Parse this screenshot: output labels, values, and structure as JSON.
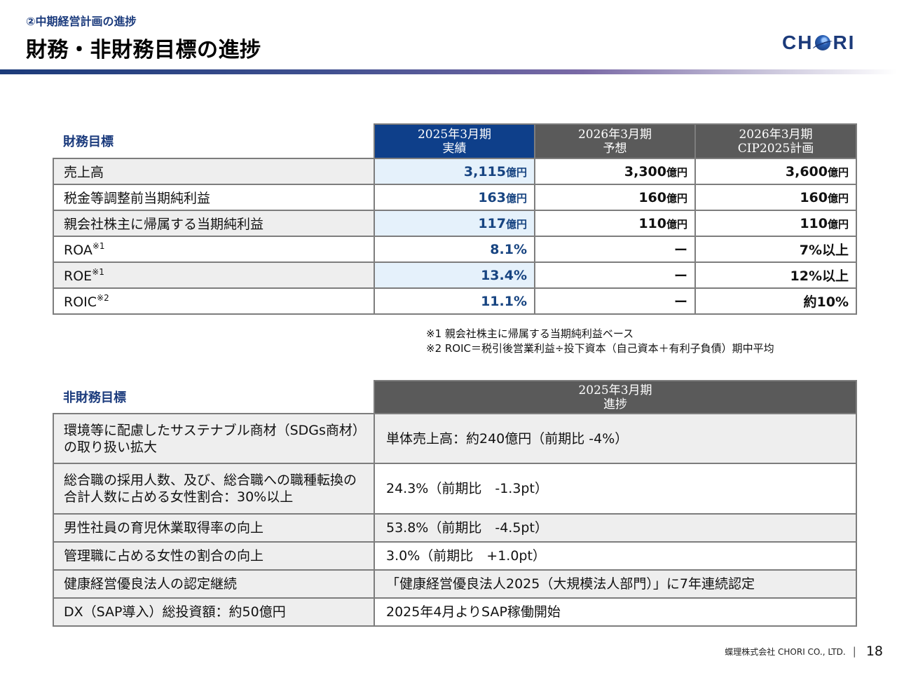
{
  "header": {
    "section": "②中期経営計画の進捗",
    "title": "財務・非財務目標の進捗",
    "logo": {
      "left": "CH",
      "right": "RI"
    }
  },
  "financial": {
    "label": "財務目標",
    "columns": [
      {
        "line1": "2025年3月期",
        "line2": "実績"
      },
      {
        "line1": "2026年3月期",
        "line2": "予想"
      },
      {
        "line1": "2026年3月期",
        "line2": "CIP2025計画"
      }
    ],
    "rows": [
      {
        "label": "売上高",
        "note": "",
        "actual": "3,115",
        "actual_unit": "億円",
        "forecast": "3,300",
        "forecast_unit": "億円",
        "plan": "3,600",
        "plan_unit": "億円"
      },
      {
        "label": "税金等調整前当期純利益",
        "note": "",
        "actual": "163",
        "actual_unit": "億円",
        "forecast": "160",
        "forecast_unit": "億円",
        "plan": "160",
        "plan_unit": "億円"
      },
      {
        "label": "親会社株主に帰属する当期純利益",
        "note": "",
        "actual": "117",
        "actual_unit": "億円",
        "forecast": "110",
        "forecast_unit": "億円",
        "plan": "110",
        "plan_unit": "億円"
      },
      {
        "label": "ROA",
        "note": "※1",
        "actual": "8.1%",
        "actual_unit": "",
        "forecast": "ー",
        "forecast_unit": "",
        "plan": "7%以上",
        "plan_unit": ""
      },
      {
        "label": "ROE",
        "note": "※1",
        "actual": "13.4%",
        "actual_unit": "",
        "forecast": "ー",
        "forecast_unit": "",
        "plan": "12%以上",
        "plan_unit": ""
      },
      {
        "label": "ROIC",
        "note": "※2",
        "actual": "11.1%",
        "actual_unit": "",
        "forecast": "ー",
        "forecast_unit": "",
        "plan": "約10%",
        "plan_unit": ""
      }
    ],
    "notes": [
      "※1 親会社株主に帰属する当期純利益ベース",
      "※2 ROIC＝税引後営業利益÷投下資本（自己資本＋有利子負債）期中平均"
    ]
  },
  "nonfinancial": {
    "label": "非財務目標",
    "column": {
      "line1": "2025年3月期",
      "line2": "進捗"
    },
    "rows": [
      {
        "label1": "環境等に配慮したサステナブル商材（SDGs商材）",
        "label2": "の取り扱い拡大",
        "value": "単体売上高：約240億円（前期比 -4%）"
      },
      {
        "label1": "総合職の採用人数、及び、総合職への職種転換の",
        "label2": "合計人数に占める女性割合：30%以上",
        "value": "24.3%（前期比　-1.3pt）"
      },
      {
        "label1": "男性社員の育児休業取得率の向上",
        "label2": "",
        "value": "53.8%（前期比　-4.5pt）"
      },
      {
        "label1": "管理職に占める女性の割合の向上",
        "label2": "",
        "value": "3.0%（前期比　+1.0pt）"
      },
      {
        "label1": "健康経営優良法人の認定継続",
        "label2": "",
        "value": "「健康経営優良法人2025（大規模法人部門）」に7年連続認定"
      },
      {
        "label1": "DX（SAP導入）総投資額：約50億円",
        "label2": "",
        "value": "2025年4月よりSAP稼働開始"
      }
    ]
  },
  "footer": {
    "company": "蝶理株式会社 CHORI CO., LTD.",
    "page": "18"
  }
}
